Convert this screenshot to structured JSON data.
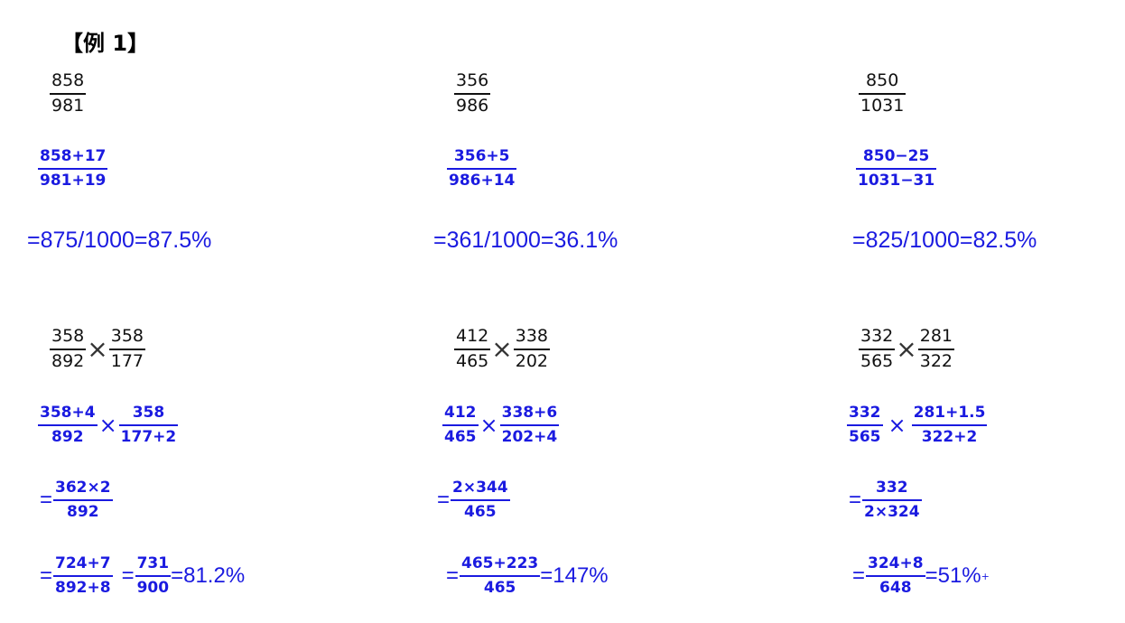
{
  "heading": "【例 1】",
  "top": [
    {
      "orig": {
        "num": "858",
        "den": "981"
      },
      "adj": {
        "num": "858+17",
        "den": "981+19"
      },
      "result": "=875/1000=87.5%"
    },
    {
      "orig": {
        "num": "356",
        "den": "986"
      },
      "adj": {
        "num": "356+5",
        "den": "986+14"
      },
      "result": "=361/1000=36.1%"
    },
    {
      "orig": {
        "num": "850",
        "den": "1031"
      },
      "adj": {
        "num": "850−25",
        "den": "1031−31"
      },
      "result": "=825/1000=82.5%"
    }
  ],
  "bottom": [
    {
      "orig": [
        {
          "num": "358",
          "den": "892"
        },
        {
          "num": "358",
          "den": "177"
        }
      ],
      "adj": [
        {
          "num": "358+4",
          "den": "892"
        },
        {
          "num": "358",
          "den": "177+2"
        }
      ],
      "step1": {
        "num": "362×2",
        "den": "892"
      },
      "step2a": {
        "num": "724+7",
        "den": "892+8"
      },
      "step2b": {
        "num": "731",
        "den": "900"
      },
      "result": "=81.2%"
    },
    {
      "orig": [
        {
          "num": "412",
          "den": "465"
        },
        {
          "num": "338",
          "den": "202"
        }
      ],
      "adj": [
        {
          "num": "412",
          "den": "465"
        },
        {
          "num": "338+6",
          "den": "202+4"
        }
      ],
      "step1": {
        "num": "2×344",
        "den": "465"
      },
      "step2a": {
        "num": "465+223",
        "den": "465"
      },
      "result": "=147%"
    },
    {
      "orig": [
        {
          "num": "332",
          "den": "565"
        },
        {
          "num": "281",
          "den": "322"
        }
      ],
      "adj": [
        {
          "num": "332",
          "den": "565"
        },
        {
          "num": "281+1.5",
          "den": "322+2"
        }
      ],
      "step1": {
        "num": "332",
        "den": "2×324"
      },
      "step2a": {
        "num": "324+8",
        "den": "648"
      },
      "result": "=51%",
      "result_sup": "+"
    }
  ],
  "symbols": {
    "eq": "=",
    "times": "×"
  },
  "colors": {
    "blue": "#1a1ae0",
    "black": "#111111"
  }
}
